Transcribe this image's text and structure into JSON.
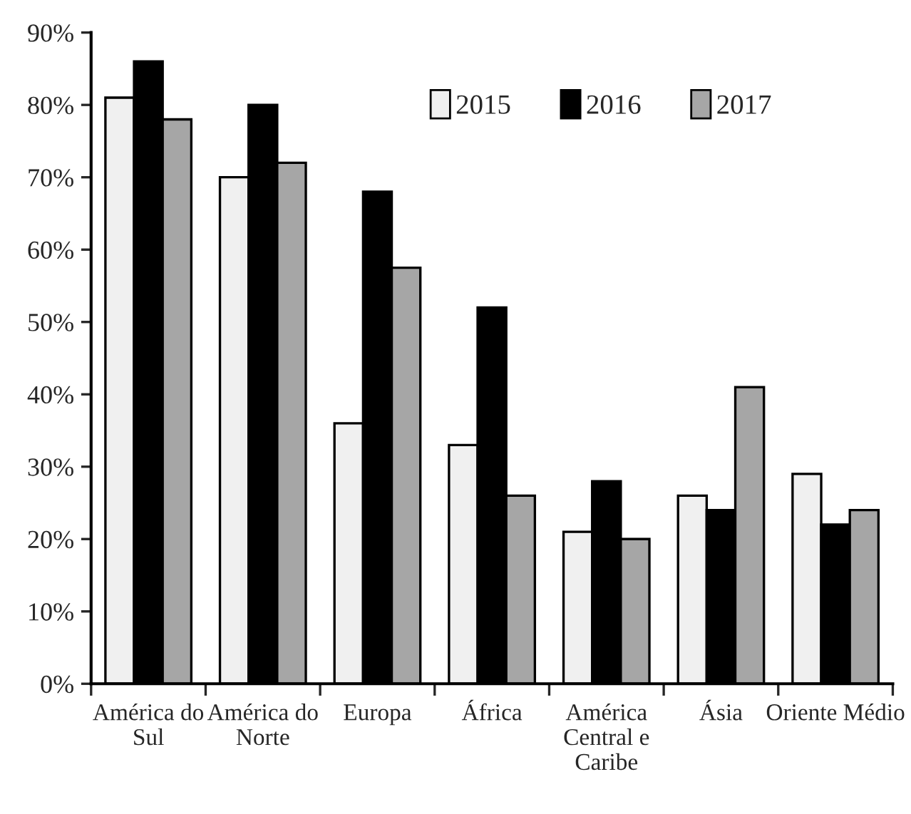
{
  "chart_data": {
    "type": "bar",
    "categories": [
      "América do\nSul",
      "América do\nNorte",
      "Europa",
      "África",
      "América\nCentral e\nCaribe",
      "Ásia",
      "Oriente Médio"
    ],
    "series": [
      {
        "name": "2015",
        "color": "#f0f0f0",
        "values": [
          81,
          70,
          36,
          33,
          21,
          26,
          29
        ]
      },
      {
        "name": "2016",
        "color": "#000000",
        "values": [
          86,
          80,
          68,
          52,
          28,
          24,
          22
        ]
      },
      {
        "name": "2017",
        "color": "#a6a6a6",
        "values": [
          78,
          72,
          57.5,
          26,
          20,
          41,
          24
        ]
      }
    ],
    "ylim": [
      0,
      90
    ],
    "yticks": [
      {
        "value": 0,
        "label": "0%"
      },
      {
        "value": 10,
        "label": "10%"
      },
      {
        "value": 20,
        "label": "20%"
      },
      {
        "value": 30,
        "label": "30%"
      },
      {
        "value": 40,
        "label": "40%"
      },
      {
        "value": 50,
        "label": "50%"
      },
      {
        "value": 60,
        "label": "60%"
      },
      {
        "value": 70,
        "label": "70%"
      },
      {
        "value": 80,
        "label": "80%"
      },
      {
        "value": 90,
        "label": "90%"
      }
    ],
    "grid": false,
    "legend": "top right"
  }
}
